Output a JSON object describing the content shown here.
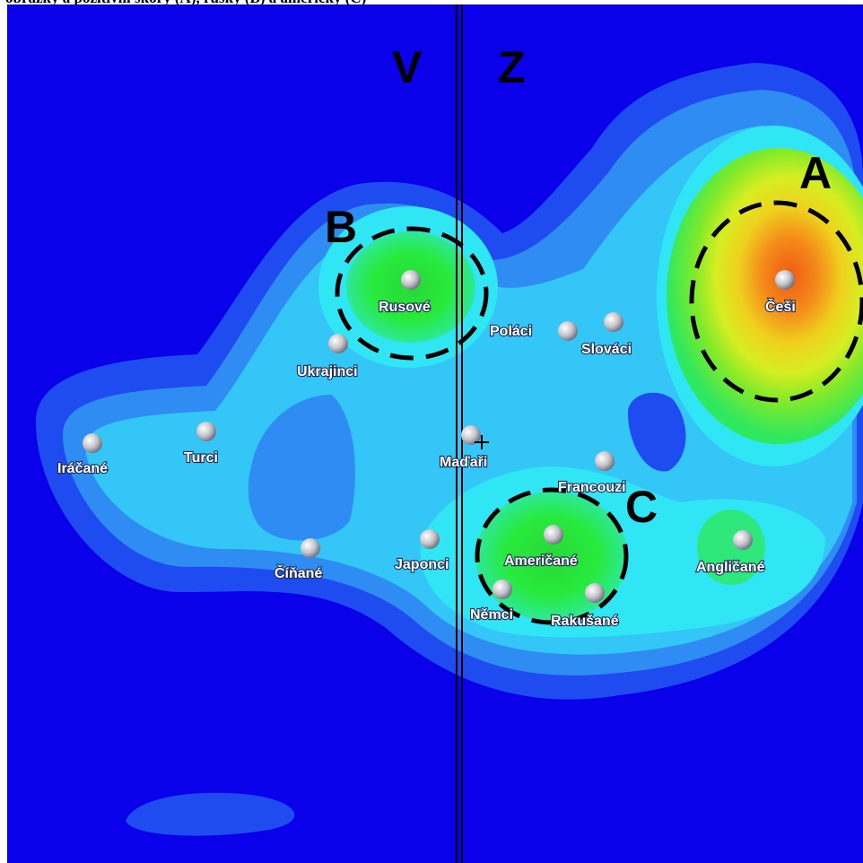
{
  "header": {
    "text": "obrázky a pozitivní skóry (A), ruský (B) a americký (C)"
  },
  "axis": {
    "left": "V",
    "right": "Z"
  },
  "clusters": {
    "a": "A",
    "b": "B",
    "c": "C"
  },
  "nodes": {
    "cesi": "Češi",
    "rusove": "Rusové",
    "ukrajinci": "Ukrajinci",
    "polaci": "Poláci",
    "slovaci": "Slováci",
    "iracane": "Iráčané",
    "turci": "Turci",
    "madari": "Maďaři",
    "francouzi": "Francouzi",
    "cinane": "Číňané",
    "japonci": "Japonci",
    "americane": "Američané",
    "anglicane": "Angličané",
    "nemci": "Němci",
    "rakusane": "Rakušané"
  },
  "colors": {
    "background": "#0a00ea",
    "level1": "#1f4cf0",
    "level2": "#2f8cf3",
    "level3": "#33c6f6",
    "level4": "#30e6f5",
    "green": "#1fea3a",
    "yellow": "#e6ee1a",
    "orange": "#f26a14"
  }
}
